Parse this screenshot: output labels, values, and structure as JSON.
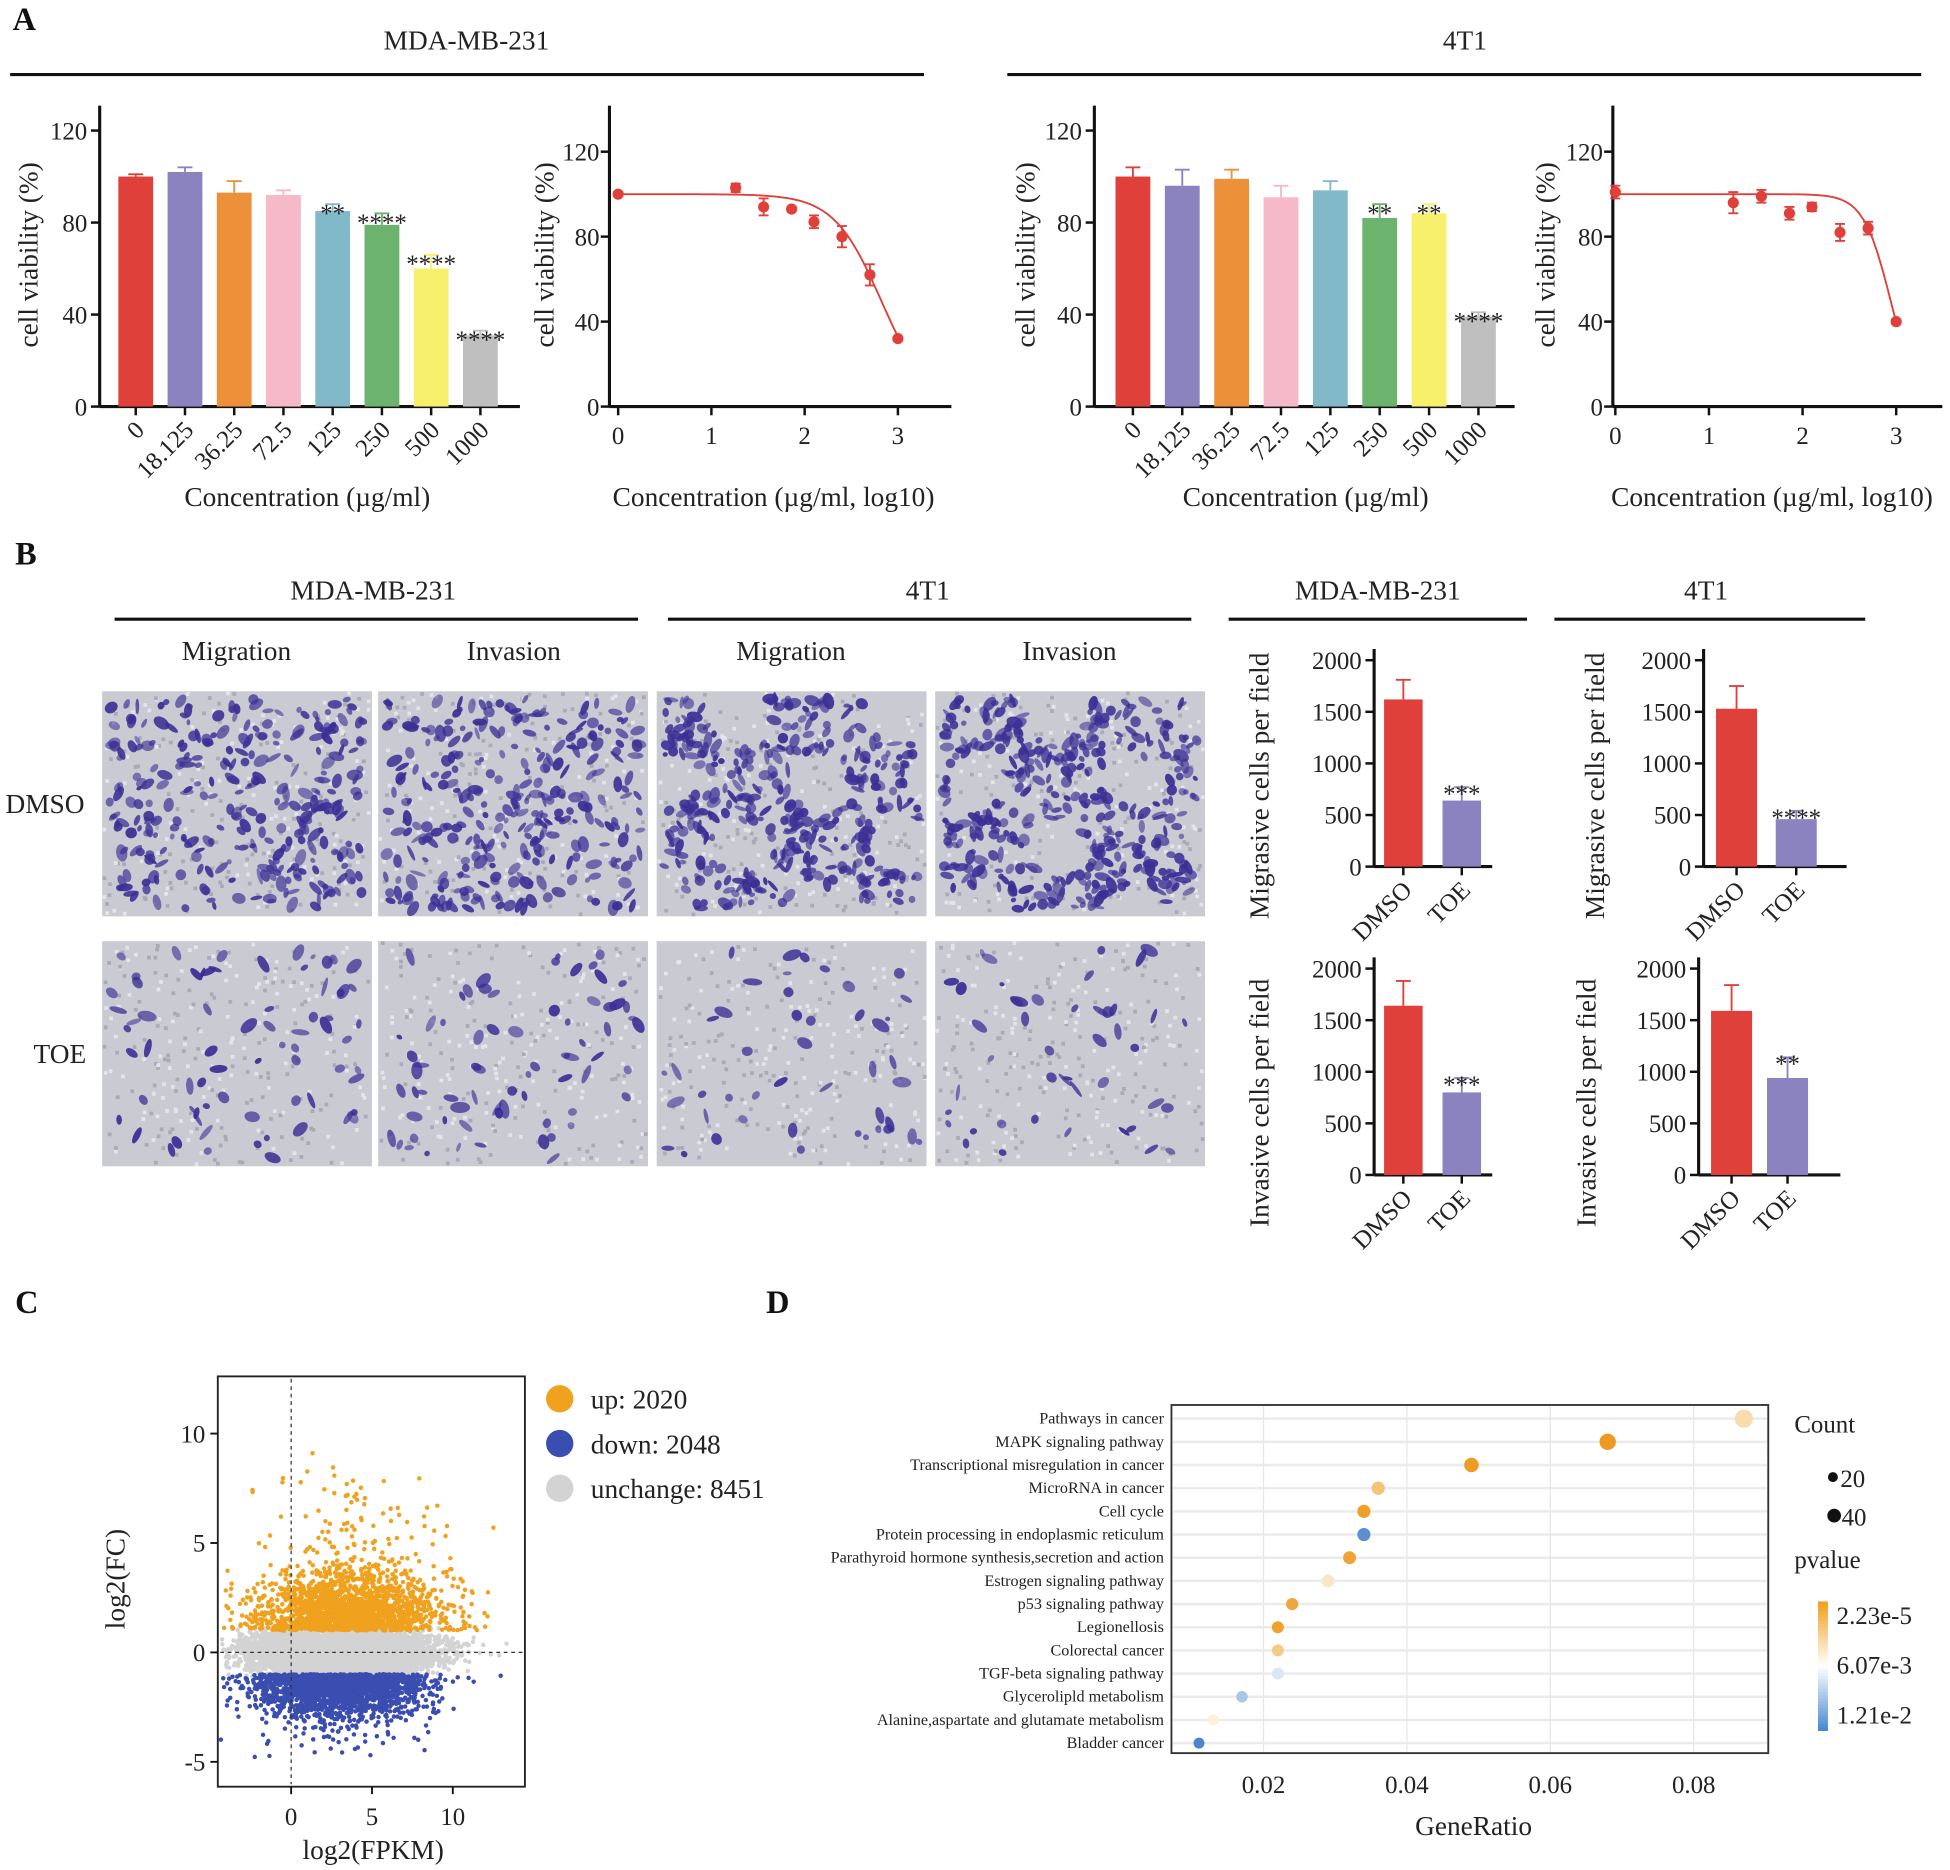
{
  "panel_letters": [
    "A",
    "B",
    "C",
    "D"
  ],
  "panel_a": {
    "titles": [
      "MDA-MB-231",
      "4T1"
    ]
  },
  "panel_b": {
    "titles": [
      "MDA-MB-231",
      "4T1",
      "MDA-MB-231",
      "4T1"
    ],
    "subtitles": [
      "Migration",
      "Invasion",
      "Migration",
      "Invasion"
    ],
    "row_labels": [
      "DMSO",
      "TOE"
    ],
    "image_stain_color": "#3b2f95"
  },
  "chart_data": [
    {
      "type": "bar",
      "panel": "A",
      "cell_line": "MDA-MB-231",
      "categories": [
        "0",
        "18.125",
        "36.25",
        "72.5",
        "125",
        "250",
        "500",
        "1000"
      ],
      "values": [
        100,
        102,
        93,
        92,
        85,
        79,
        60,
        31
      ],
      "errors": [
        1,
        2,
        5,
        2,
        3,
        5,
        6,
        2
      ],
      "significance": [
        "",
        "",
        "",
        "",
        "**",
        "****",
        "****",
        "****"
      ],
      "colors": [
        "#e0403a",
        "#8b83c0",
        "#ec9139",
        "#f5b9c8",
        "#82b9c9",
        "#6cb46e",
        "#f6f06c",
        "#bfbfbf"
      ],
      "xlabel": "Concentration (µg/ml)",
      "ylabel": "cell viability (%)",
      "ylim": [
        0,
        130
      ],
      "yticks": [
        "0",
        "40",
        "80",
        "120"
      ]
    },
    {
      "type": "line",
      "panel": "A",
      "cell_line": "MDA-MB-231",
      "x": [
        0,
        1.26,
        1.56,
        1.86,
        2.1,
        2.4,
        2.7,
        3
      ],
      "y": [
        100,
        103,
        94,
        93,
        87,
        80,
        62,
        32
      ],
      "errors": [
        1,
        2,
        4,
        1,
        3,
        5,
        5,
        1
      ],
      "fit": {
        "top": 100,
        "bottom": 0,
        "logIC50": 2.82,
        "hill": 1.71
      },
      "color": "#e0403a",
      "xlabel": "Concentration (µg/ml, log10)",
      "ylabel": "cell viability (%)",
      "xlim": [
        0,
        3.5
      ],
      "ylim": [
        0,
        140
      ],
      "xticks": [
        "0",
        "1",
        "2",
        "3"
      ],
      "yticks": [
        "0",
        "40",
        "80",
        "120"
      ]
    },
    {
      "type": "bar",
      "panel": "A",
      "cell_line": "4T1",
      "categories": [
        "0",
        "18.125",
        "36.25",
        "72.5",
        "125",
        "250",
        "500",
        "1000"
      ],
      "values": [
        100,
        96,
        99,
        91,
        94,
        82,
        84,
        39
      ],
      "errors": [
        4,
        7,
        4,
        5,
        4,
        6,
        4,
        2
      ],
      "significance": [
        "",
        "",
        "",
        "",
        "",
        "**",
        "**",
        "****"
      ],
      "colors": [
        "#e0403a",
        "#8b83c0",
        "#ec9139",
        "#f5b9c8",
        "#82b9c9",
        "#6cb46e",
        "#f6f06c",
        "#bfbfbf"
      ],
      "xlabel": "Concentration (µg/ml)",
      "ylabel": "cell viability (%)",
      "ylim": [
        0,
        130
      ],
      "yticks": [
        "0",
        "40",
        "80",
        "120"
      ]
    },
    {
      "type": "line",
      "panel": "A",
      "cell_line": "4T1",
      "x": [
        0,
        1.26,
        1.56,
        1.86,
        2.1,
        2.4,
        2.7,
        3
      ],
      "y": [
        101,
        96,
        99,
        91,
        94,
        82,
        84,
        40
      ],
      "errors": [
        3,
        5,
        3,
        3,
        2,
        4,
        3,
        1
      ],
      "fit": {
        "top": 100,
        "bottom": 0,
        "logIC50": 2.94,
        "hill": 3.0
      },
      "color": "#e0403a",
      "xlabel": "Concentration (µg/ml, log10)",
      "ylabel": "cell viability (%)",
      "xlim": [
        0,
        3.5
      ],
      "ylim": [
        0,
        140
      ],
      "xticks": [
        "0",
        "1",
        "2",
        "3"
      ],
      "yticks": [
        "0",
        "40",
        "80",
        "120"
      ]
    },
    {
      "type": "bar",
      "panel": "B",
      "cell_line": "MDA-MB-231",
      "categories": [
        "DMSO",
        "TOE"
      ],
      "values": [
        1620,
        640
      ],
      "errors": [
        190,
        130
      ],
      "significance": [
        "",
        "***"
      ],
      "colors": [
        "#e0403a",
        "#8b83c0"
      ],
      "ylabel": "Migrasive cells per field",
      "ylim": [
        0,
        2000
      ],
      "yticks": [
        "0",
        "500",
        "1000",
        "1500",
        "2000"
      ]
    },
    {
      "type": "bar",
      "panel": "B",
      "cell_line": "4T1",
      "categories": [
        "DMSO",
        "TOE"
      ],
      "values": [
        1530,
        460
      ],
      "errors": [
        220,
        80
      ],
      "significance": [
        "",
        "****"
      ],
      "colors": [
        "#e0403a",
        "#8b83c0"
      ],
      "ylabel": "Migrasive cells per field",
      "ylim": [
        0,
        2000
      ],
      "yticks": [
        "0",
        "500",
        "1000",
        "1500",
        "2000"
      ]
    },
    {
      "type": "bar",
      "panel": "B",
      "cell_line": "MDA-MB-231",
      "categories": [
        "DMSO",
        "TOE"
      ],
      "values": [
        1640,
        800
      ],
      "errors": [
        240,
        140
      ],
      "significance": [
        "",
        "***"
      ],
      "colors": [
        "#e0403a",
        "#8b83c0"
      ],
      "ylabel": "Invasive cells per field",
      "ylim": [
        0,
        2000
      ],
      "yticks": [
        "0",
        "500",
        "1000",
        "1500",
        "2000"
      ]
    },
    {
      "type": "bar",
      "panel": "B",
      "cell_line": "4T1",
      "categories": [
        "DMSO",
        "TOE"
      ],
      "values": [
        1590,
        940
      ],
      "errors": [
        250,
        200
      ],
      "significance": [
        "",
        "**"
      ],
      "colors": [
        "#e0403a",
        "#8b83c0"
      ],
      "ylabel": "Invasive cells per field",
      "ylim": [
        0,
        2000
      ],
      "yticks": [
        "0",
        "500",
        "1000",
        "1500",
        "2000"
      ]
    },
    {
      "type": "scatter",
      "panel": "C",
      "xlabel": "log2(FPKM)",
      "ylabel": "log2(FC)",
      "xlim": [
        -4.5,
        14.5
      ],
      "ylim": [
        -5.9,
        12.8
      ],
      "xticks": [
        "0",
        "5",
        "10"
      ],
      "yticks": [
        "-5",
        "0",
        "5",
        "10"
      ],
      "groups": [
        {
          "name": "up",
          "label": "up: 2020",
          "count": 2020,
          "color": "#f0a11e"
        },
        {
          "name": "down",
          "label": "down: 2048",
          "count": 2048,
          "color": "#3a4db0"
        },
        {
          "name": "unchange",
          "label": "unchange: 8451",
          "count": 8451,
          "color": "#d3d3d3"
        }
      ]
    },
    {
      "type": "scatter",
      "panel": "D",
      "xlabel": "GeneRatio",
      "xlim": [
        -0.02,
        0.091
      ],
      "xticks": [
        "0.02",
        "0.04",
        "0.06",
        "0.08"
      ],
      "terms": [
        "Pathways in cancer",
        "MAPK signaling pathway",
        "Transcriptional misregulation in cancer",
        "MicroRNA in cancer",
        "Cell cycle",
        "Protein processing in endoplasmic reticulum",
        "Parathyroid hormone synthesis,secretion and action",
        "Estrogen signaling pathway",
        "p53 signaling pathway",
        "Legionellosis",
        "Colorectal cancer",
        "TGF-beta signaling pathway",
        "Glycerolipld metabolism",
        "Alanine,aspartate and glutamate metabolism",
        "Bladder cancer"
      ],
      "gene_ratio": [
        0.087,
        0.068,
        0.049,
        0.036,
        0.034,
        0.034,
        0.032,
        0.029,
        0.024,
        0.022,
        0.022,
        0.022,
        0.017,
        0.013,
        0.011
      ],
      "colors": [
        "#f8dcae",
        "#ee9a22",
        "#ef9c26",
        "#f3c47a",
        "#ef9f2a",
        "#5b8fd0",
        "#f0a33a",
        "#f8e6c8",
        "#f0a640",
        "#efa12c",
        "#f5cb86",
        "#dbe7f5",
        "#a9c6e8",
        "#fbf0d8",
        "#4d86c9"
      ],
      "legend": {
        "size_title": "Count",
        "sizes": [
          "20",
          "40"
        ],
        "color_title": "pvalue",
        "color_labels": [
          "2.23e-5",
          "6.07e-3",
          "1.21e-2"
        ],
        "gradient": [
          "#f0a020",
          "#ffffff",
          "#4a8ad0"
        ]
      }
    }
  ]
}
